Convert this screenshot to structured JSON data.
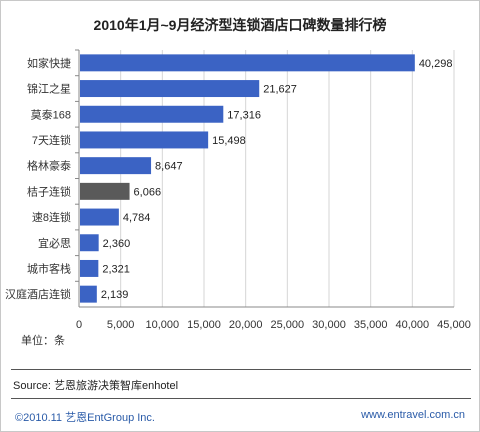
{
  "footer": {
    "source": "Source: 艺恩旅游决策智库enhotel",
    "copyright": "©2010.11  艺恩EntGroup Inc.",
    "website": "www.entravel.com.cn"
  },
  "chart_data": {
    "type": "bar",
    "orientation": "horizontal",
    "title": "2010年1月~9月经济型连锁酒店口碑数量排行榜",
    "unit_label": "单位：条",
    "categories": [
      "如家快捷",
      "锦江之星",
      "莫泰168",
      "7天连锁",
      "格林豪泰",
      "桔子连锁",
      "速8连锁",
      "宜必思",
      "城市客栈",
      "汉庭酒店连锁"
    ],
    "values": [
      40298,
      21627,
      17316,
      15498,
      8647,
      6066,
      4784,
      2360,
      2321,
      2139
    ],
    "value_labels": [
      "40,298",
      "21,627",
      "17,316",
      "15,498",
      "8,647",
      "6,066",
      "4,784",
      "2,360",
      "2,321",
      "2,139"
    ],
    "xlim": [
      0,
      45000
    ],
    "x_ticks": [
      0,
      5000,
      10000,
      15000,
      20000,
      25000,
      30000,
      35000,
      40000,
      45000
    ],
    "x_tick_labels": [
      "0",
      "5,000",
      "10,000",
      "15,000",
      "20,000",
      "25,000",
      "30,000",
      "35,000",
      "40,000",
      "45,000"
    ],
    "grid": true,
    "colors": {
      "default": "#3b63c4",
      "highlight": "#5a5a5a",
      "highlight_index": 5
    }
  }
}
